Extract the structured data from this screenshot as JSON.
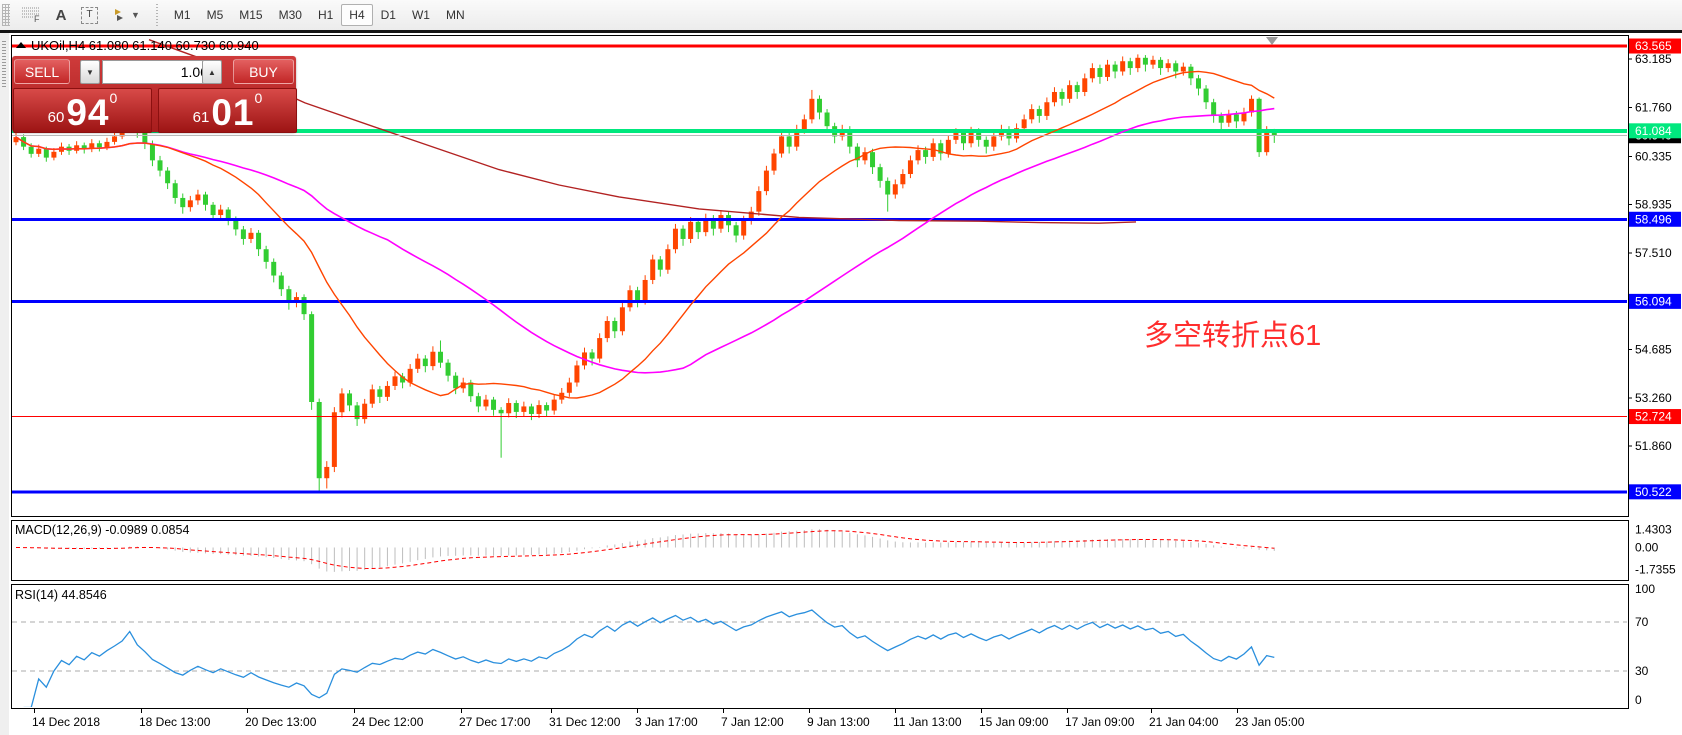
{
  "toolbar": {
    "icons": [
      "grid-properties",
      "text-label",
      "text-box",
      "draw-arrows",
      "dropdown-caret"
    ],
    "a_tool": "A",
    "t_tool": "T",
    "f_badge": "F",
    "timeframes": [
      "M1",
      "M5",
      "M15",
      "M30",
      "H1",
      "H4",
      "D1",
      "W1",
      "MN"
    ],
    "active_timeframe": "H4"
  },
  "chart": {
    "symbol_title": "UKOil,H4",
    "open": "61.080",
    "high": "61.140",
    "low": "60.730",
    "close": "60.940"
  },
  "trade_panel": {
    "sell_label": "SELL",
    "buy_label": "BUY",
    "volume": "1.00",
    "sell_price": {
      "prefix": "60",
      "pips": "94",
      "frac": "0"
    },
    "buy_price": {
      "prefix": "61",
      "pips": "01",
      "frac": "0"
    }
  },
  "annotation": {
    "text": "多空转折点61",
    "color": "#ff2d2d"
  },
  "macd": {
    "label": "MACD(12,26,9)",
    "main": "-0.0989",
    "signal": "0.0854",
    "axis": [
      "1.4303",
      "0.00",
      "-1.7355"
    ]
  },
  "rsi": {
    "label": "RSI(14)",
    "value": "44.8546",
    "axis": [
      "100",
      "70",
      "30",
      "0"
    ],
    "levels": [
      70,
      30
    ]
  },
  "chart_data": {
    "type": "candlestick",
    "symbol": "UKOil",
    "timeframe": "H4",
    "colors": {
      "bull": "#ff4500",
      "bear": "#32cd32",
      "ma_fast": "#ff4500",
      "ma_mid": "#ff00ff",
      "ma_slow": "#b22222",
      "bid_line": "#b9b9b9",
      "macd_hist": "#bdbdbd",
      "macd_signal": "#ff0000",
      "rsi_line": "#2a8fdd",
      "level_blue": "#0000ff",
      "level_red": "#ff0000",
      "level_green": "#00e87e"
    },
    "y_ticks": [
      "63.185",
      "61.760",
      "60.335",
      "58.935",
      "57.510",
      "54.685",
      "53.260",
      "51.860"
    ],
    "levels": [
      {
        "price": 63.565,
        "label": "63.565",
        "color": "#ff0000",
        "width": 3
      },
      {
        "price": 61.084,
        "label": "61.084",
        "color": "#00e87e",
        "width": 4
      },
      {
        "price": 60.94,
        "label": "60.940",
        "color": "#b9b9b9",
        "width": 1,
        "label_bg": "#000000"
      },
      {
        "price": 58.496,
        "label": "58.496",
        "color": "#0000ff",
        "width": 3
      },
      {
        "price": 56.094,
        "label": "56.094",
        "color": "#0000ff",
        "width": 3
      },
      {
        "price": 52.724,
        "label": "52.724",
        "color": "#ff0000",
        "width": 1
      },
      {
        "price": 50.522,
        "label": "50.522",
        "color": "#0000ff",
        "width": 3
      }
    ],
    "x_labels": [
      "14 Dec 2018",
      "18 Dec 13:00",
      "20 Dec 13:00",
      "24 Dec 12:00",
      "27 Dec 17:00",
      "31 Dec 12:00",
      "3 Jan 17:00",
      "7 Jan 12:00",
      "9 Jan 13:00",
      "11 Jan 13:00",
      "15 Jan 09:00",
      "17 Jan 09:00",
      "21 Jan 04:00",
      "23 Jan 05:00"
    ],
    "ma_periods": {
      "fast": 18,
      "mid": 50
    },
    "macd_params": [
      12,
      26,
      9
    ],
    "rsi_period": 14,
    "slow_line_points": [
      [
        140,
        63.75
      ],
      [
        220,
        62.9
      ],
      [
        296,
        61.9
      ],
      [
        390,
        60.95
      ],
      [
        490,
        59.95
      ],
      [
        550,
        59.5
      ],
      [
        610,
        59.15
      ],
      [
        690,
        58.8
      ],
      [
        790,
        58.55
      ],
      [
        890,
        58.46
      ],
      [
        970,
        58.44
      ],
      [
        1030,
        58.4
      ],
      [
        1090,
        58.38
      ],
      [
        1127,
        58.42
      ]
    ],
    "candles": [
      [
        60.75,
        61.02,
        60.66,
        60.9
      ],
      [
        60.9,
        60.98,
        60.52,
        60.62
      ],
      [
        60.62,
        60.72,
        60.3,
        60.41
      ],
      [
        60.41,
        60.68,
        60.32,
        60.56
      ],
      [
        60.56,
        60.62,
        60.18,
        60.3
      ],
      [
        60.3,
        60.58,
        60.22,
        60.47
      ],
      [
        60.47,
        60.74,
        60.38,
        60.62
      ],
      [
        60.62,
        60.7,
        60.38,
        60.5
      ],
      [
        60.5,
        60.78,
        60.42,
        60.66
      ],
      [
        60.66,
        60.74,
        60.42,
        60.55
      ],
      [
        60.55,
        60.84,
        60.46,
        60.72
      ],
      [
        60.72,
        60.8,
        60.48,
        60.6
      ],
      [
        60.6,
        60.88,
        60.52,
        60.76
      ],
      [
        60.76,
        61.04,
        60.68,
        60.92
      ],
      [
        60.92,
        61.25,
        60.84,
        61.12
      ],
      [
        61.12,
        61.93,
        61.02,
        61.58
      ],
      [
        61.58,
        61.72,
        60.88,
        61.05
      ],
      [
        61.05,
        61.15,
        60.55,
        60.7
      ],
      [
        60.7,
        60.8,
        60.05,
        60.22
      ],
      [
        60.22,
        60.35,
        59.75,
        59.92
      ],
      [
        59.92,
        60.02,
        59.38,
        59.55
      ],
      [
        59.55,
        59.65,
        58.95,
        59.12
      ],
      [
        59.12,
        59.25,
        58.66,
        58.85
      ],
      [
        58.85,
        59.18,
        58.72,
        59.05
      ],
      [
        59.05,
        59.36,
        58.92,
        59.22
      ],
      [
        59.22,
        59.3,
        58.75,
        58.92
      ],
      [
        58.92,
        59.0,
        58.45,
        58.62
      ],
      [
        58.62,
        58.92,
        58.5,
        58.78
      ],
      [
        58.78,
        58.85,
        58.32,
        58.5
      ],
      [
        58.5,
        58.58,
        58.02,
        58.2
      ],
      [
        58.2,
        58.3,
        57.75,
        57.92
      ],
      [
        57.92,
        58.24,
        57.8,
        58.1
      ],
      [
        58.1,
        58.18,
        57.42,
        57.62
      ],
      [
        57.62,
        57.72,
        57.05,
        57.25
      ],
      [
        57.25,
        57.35,
        56.65,
        56.85
      ],
      [
        56.85,
        56.95,
        56.25,
        56.45
      ],
      [
        56.45,
        56.55,
        55.85,
        56.05
      ],
      [
        56.05,
        56.36,
        55.92,
        56.22
      ],
      [
        56.22,
        56.3,
        55.55,
        55.72
      ],
      [
        55.72,
        55.8,
        52.92,
        53.15
      ],
      [
        53.15,
        53.25,
        50.55,
        50.92
      ],
      [
        50.92,
        51.42,
        50.62,
        51.25
      ],
      [
        51.25,
        53.0,
        51.1,
        52.85
      ],
      [
        52.85,
        53.55,
        52.7,
        53.4
      ],
      [
        53.4,
        53.5,
        52.88,
        53.05
      ],
      [
        53.05,
        53.15,
        52.45,
        52.65
      ],
      [
        52.65,
        53.24,
        52.52,
        53.1
      ],
      [
        53.1,
        53.66,
        52.98,
        53.52
      ],
      [
        53.52,
        53.62,
        53.12,
        53.3
      ],
      [
        53.3,
        53.76,
        53.18,
        53.62
      ],
      [
        53.62,
        54.04,
        53.5,
        53.9
      ],
      [
        53.9,
        54.0,
        53.55,
        53.72
      ],
      [
        53.72,
        54.26,
        53.6,
        54.12
      ],
      [
        54.12,
        54.56,
        54.0,
        54.42
      ],
      [
        54.42,
        54.52,
        54.02,
        54.2
      ],
      [
        54.2,
        54.78,
        54.08,
        54.62
      ],
      [
        54.62,
        54.95,
        54.15,
        54.3
      ],
      [
        54.3,
        54.4,
        53.75,
        53.92
      ],
      [
        53.92,
        54.02,
        53.38,
        53.55
      ],
      [
        53.55,
        53.86,
        53.42,
        53.72
      ],
      [
        53.72,
        53.8,
        53.15,
        53.32
      ],
      [
        53.32,
        53.42,
        52.85,
        53.02
      ],
      [
        53.02,
        53.36,
        52.9,
        53.22
      ],
      [
        53.22,
        53.3,
        52.75,
        52.92
      ],
      [
        52.92,
        53.0,
        51.52,
        52.82
      ],
      [
        52.82,
        53.26,
        52.7,
        53.12
      ],
      [
        53.12,
        53.2,
        52.68,
        52.86
      ],
      [
        52.86,
        53.16,
        52.74,
        53.02
      ],
      [
        53.02,
        53.1,
        52.62,
        52.8
      ],
      [
        52.8,
        53.2,
        52.68,
        53.06
      ],
      [
        53.06,
        53.14,
        52.72,
        52.9
      ],
      [
        52.9,
        53.36,
        52.78,
        53.22
      ],
      [
        53.22,
        53.56,
        53.1,
        53.42
      ],
      [
        53.42,
        53.86,
        53.3,
        53.72
      ],
      [
        53.72,
        54.36,
        53.6,
        54.22
      ],
      [
        54.22,
        54.74,
        54.1,
        54.6
      ],
      [
        54.6,
        54.7,
        54.22,
        54.42
      ],
      [
        54.42,
        55.16,
        54.3,
        55.02
      ],
      [
        55.02,
        55.66,
        54.9,
        55.52
      ],
      [
        55.52,
        55.62,
        55.02,
        55.22
      ],
      [
        55.22,
        56.06,
        55.1,
        55.92
      ],
      [
        55.92,
        56.56,
        55.8,
        56.42
      ],
      [
        56.42,
        56.52,
        55.92,
        56.12
      ],
      [
        56.12,
        56.86,
        56.0,
        56.72
      ],
      [
        56.72,
        57.46,
        56.6,
        57.32
      ],
      [
        57.32,
        57.42,
        56.82,
        57.02
      ],
      [
        57.02,
        57.76,
        56.9,
        57.62
      ],
      [
        57.62,
        58.36,
        57.5,
        58.22
      ],
      [
        58.22,
        58.32,
        57.72,
        57.92
      ],
      [
        57.92,
        58.56,
        57.8,
        58.42
      ],
      [
        58.42,
        58.52,
        57.92,
        58.12
      ],
      [
        58.12,
        58.66,
        58.0,
        58.52
      ],
      [
        58.52,
        58.62,
        58.02,
        58.22
      ],
      [
        58.22,
        58.76,
        58.1,
        58.62
      ],
      [
        58.62,
        58.72,
        58.12,
        58.32
      ],
      [
        58.32,
        58.42,
        57.82,
        58.02
      ],
      [
        58.02,
        58.6,
        57.9,
        58.46
      ],
      [
        58.46,
        58.86,
        58.34,
        58.72
      ],
      [
        58.72,
        59.46,
        58.6,
        59.32
      ],
      [
        59.32,
        60.06,
        59.2,
        59.92
      ],
      [
        59.92,
        60.56,
        59.8,
        60.42
      ],
      [
        60.42,
        61.06,
        60.3,
        60.92
      ],
      [
        60.92,
        61.02,
        60.42,
        60.62
      ],
      [
        60.62,
        61.26,
        60.5,
        61.12
      ],
      [
        61.12,
        61.56,
        61.0,
        61.42
      ],
      [
        61.42,
        62.28,
        61.3,
        62.02
      ],
      [
        62.02,
        62.12,
        61.42,
        61.62
      ],
      [
        61.62,
        61.72,
        61.02,
        61.22
      ],
      [
        61.22,
        61.32,
        60.72,
        60.92
      ],
      [
        60.92,
        61.26,
        60.8,
        61.12
      ],
      [
        61.12,
        61.22,
        60.42,
        60.62
      ],
      [
        60.62,
        60.72,
        60.02,
        60.22
      ],
      [
        60.22,
        60.6,
        60.1,
        60.46
      ],
      [
        60.46,
        60.56,
        59.82,
        60.02
      ],
      [
        60.02,
        60.12,
        59.42,
        59.62
      ],
      [
        59.62,
        59.72,
        58.72,
        59.22
      ],
      [
        59.22,
        59.66,
        59.1,
        59.52
      ],
      [
        59.52,
        59.96,
        59.4,
        59.82
      ],
      [
        59.82,
        60.36,
        59.7,
        60.22
      ],
      [
        60.22,
        60.66,
        60.1,
        60.52
      ],
      [
        60.52,
        60.62,
        60.12,
        60.32
      ],
      [
        60.32,
        60.86,
        60.2,
        60.72
      ],
      [
        60.72,
        60.82,
        60.22,
        60.42
      ],
      [
        60.42,
        60.96,
        60.3,
        60.82
      ],
      [
        60.82,
        61.16,
        60.7,
        61.02
      ],
      [
        61.02,
        61.12,
        60.52,
        60.72
      ],
      [
        60.72,
        61.2,
        60.6,
        61.06
      ],
      [
        61.06,
        61.16,
        60.62,
        60.82
      ],
      [
        60.82,
        60.92,
        60.42,
        60.62
      ],
      [
        60.62,
        61.06,
        60.5,
        60.92
      ],
      [
        60.92,
        61.26,
        60.8,
        61.12
      ],
      [
        61.12,
        61.22,
        60.66,
        60.86
      ],
      [
        60.86,
        61.3,
        60.74,
        61.16
      ],
      [
        61.16,
        61.56,
        61.04,
        61.42
      ],
      [
        61.42,
        61.86,
        61.3,
        61.72
      ],
      [
        61.72,
        61.82,
        61.32,
        61.52
      ],
      [
        61.52,
        62.06,
        61.4,
        61.92
      ],
      [
        61.92,
        62.36,
        61.8,
        62.22
      ],
      [
        62.22,
        62.32,
        61.82,
        62.02
      ],
      [
        62.02,
        62.56,
        61.9,
        62.42
      ],
      [
        62.42,
        62.52,
        62.02,
        62.22
      ],
      [
        62.22,
        62.76,
        62.1,
        62.62
      ],
      [
        62.62,
        63.06,
        62.5,
        62.92
      ],
      [
        62.92,
        63.02,
        62.46,
        62.66
      ],
      [
        62.66,
        63.16,
        62.54,
        63.02
      ],
      [
        63.02,
        63.12,
        62.62,
        62.82
      ],
      [
        62.82,
        63.26,
        62.7,
        63.12
      ],
      [
        63.12,
        63.22,
        62.72,
        62.92
      ],
      [
        62.92,
        63.32,
        62.8,
        63.22
      ],
      [
        63.22,
        63.3,
        62.82,
        63.02
      ],
      [
        63.02,
        63.28,
        62.9,
        63.16
      ],
      [
        63.16,
        63.24,
        62.72,
        62.92
      ],
      [
        62.92,
        63.18,
        62.8,
        63.06
      ],
      [
        63.06,
        63.14,
        62.62,
        62.82
      ],
      [
        62.82,
        63.08,
        62.7,
        62.96
      ],
      [
        62.96,
        63.04,
        62.42,
        62.62
      ],
      [
        62.62,
        62.72,
        62.12,
        62.32
      ],
      [
        62.32,
        62.42,
        61.72,
        61.92
      ],
      [
        61.92,
        62.02,
        61.32,
        61.52
      ],
      [
        61.52,
        61.62,
        61.12,
        61.32
      ],
      [
        61.32,
        61.7,
        61.2,
        61.56
      ],
      [
        61.56,
        61.66,
        61.16,
        61.36
      ],
      [
        61.36,
        61.76,
        61.24,
        61.62
      ],
      [
        61.62,
        62.12,
        61.5,
        62.02
      ],
      [
        62.02,
        62.06,
        60.32,
        60.46
      ],
      [
        60.46,
        61.22,
        60.36,
        61.12
      ],
      [
        61.08,
        61.14,
        60.73,
        60.94
      ]
    ]
  }
}
